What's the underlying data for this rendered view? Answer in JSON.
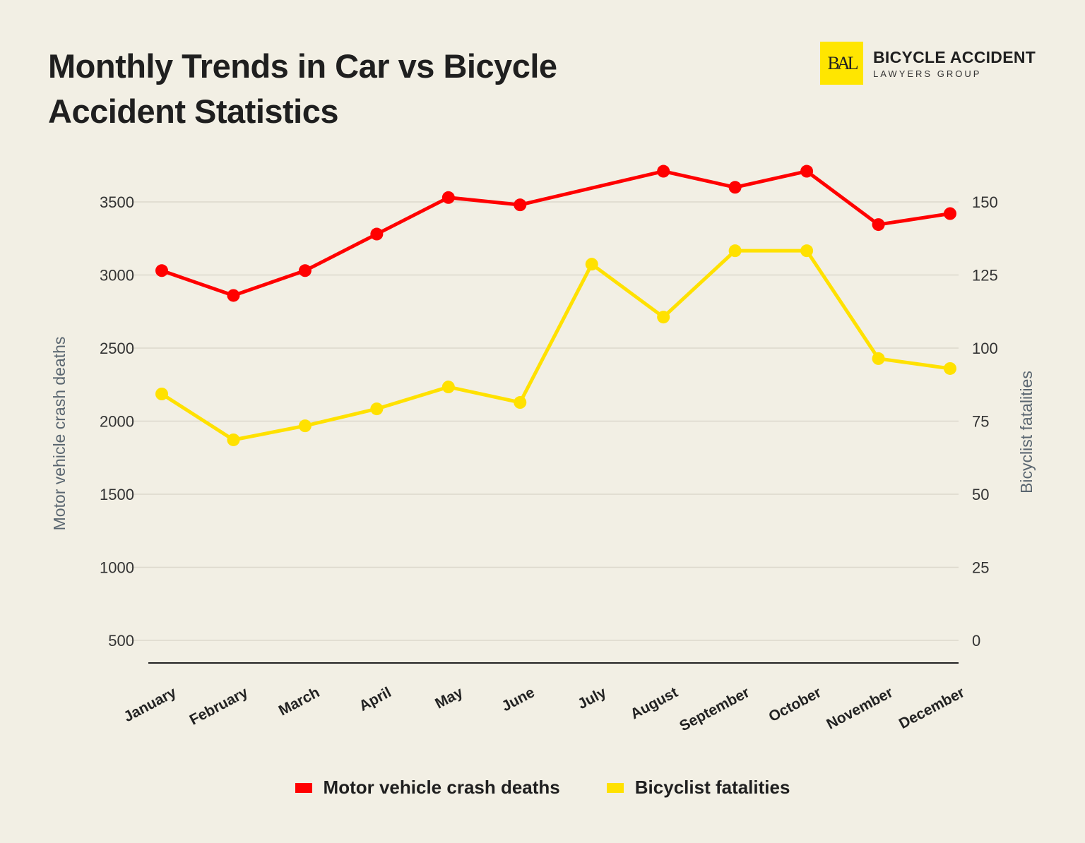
{
  "chart_data": {
    "type": "line",
    "title": "Monthly Trends in Car vs Bicycle Accident Statistics",
    "categories": [
      "January",
      "February",
      "March",
      "April",
      "May",
      "June",
      "July",
      "August",
      "September",
      "October",
      "November",
      "December"
    ],
    "series": [
      {
        "name": "Motor vehicle crash deaths",
        "axis": "left",
        "color": "#ff0000",
        "values": [
          3030,
          2860,
          3030,
          3280,
          3530,
          3480,
          null,
          3710,
          3600,
          3710,
          3345,
          3420
        ]
      },
      {
        "name": "Bicyclist fatalities",
        "axis": "right",
        "color": "#ffe100",
        "values": [
          84.3,
          68.6,
          73.4,
          79.2,
          86.7,
          81.4,
          128.7,
          110.6,
          133.3,
          133.3,
          96.4,
          93.0
        ]
      }
    ],
    "ylabel": "Motor vehicle crash deaths",
    "y2label": "Bicyclist fatalities",
    "ylim": [
      500,
      3500
    ],
    "y2lim": [
      0,
      150
    ],
    "yticks": [
      "500",
      "1000",
      "1500",
      "2000",
      "2500",
      "3000",
      "3500"
    ],
    "y2ticks": [
      "0",
      "25",
      "50",
      "75",
      "100",
      "125",
      "150"
    ],
    "grid": true,
    "legend": "bottom"
  },
  "brand": {
    "logo_mark": "BAL",
    "name": "BICYCLE ACCIDENT",
    "sub": "LAWYERS GROUP",
    "color": "#ffe600"
  }
}
